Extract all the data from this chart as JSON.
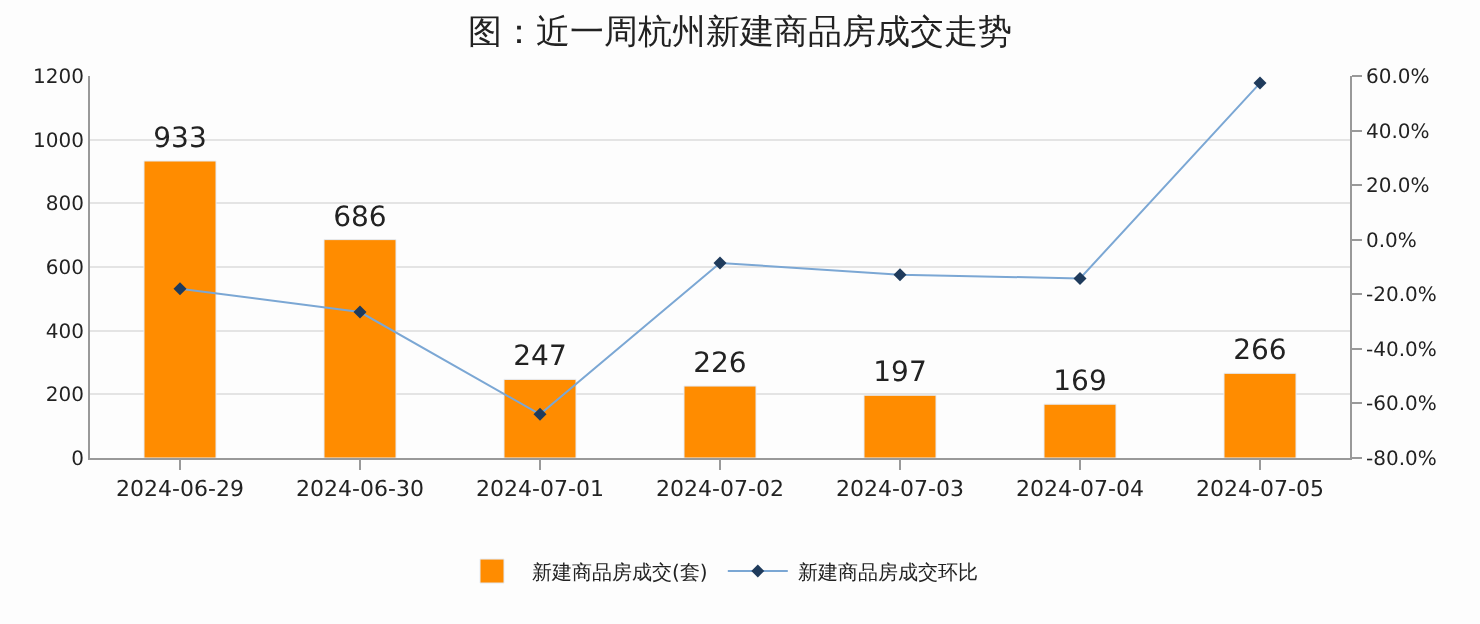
{
  "chart_data": {
    "type": "bar",
    "title": "图：近一周杭州新建商品房成交走势",
    "categories": [
      "2024-06-29",
      "2024-06-30",
      "2024-07-01",
      "2024-07-02",
      "2024-07-03",
      "2024-07-04",
      "2024-07-05"
    ],
    "series": [
      {
        "name": "新建商品房成交(套)",
        "color": "#ff8c00",
        "values": [
          933,
          686,
          247,
          226,
          197,
          169,
          266
        ],
        "value_labels": [
          "933",
          "686",
          "247",
          "226",
          "197",
          "169",
          "266"
        ]
      },
      {
        "name": "新建商品房成交环比",
        "type": "line",
        "axis": "y2",
        "color": "#7ba7d4",
        "marker": "diamond",
        "values": [
          -18,
          -26.5,
          -64,
          -8.5,
          -12.8,
          -14.2,
          57.4
        ]
      }
    ],
    "ylim": [
      0,
      1200
    ],
    "yticks": [
      0,
      200,
      400,
      600,
      800,
      1000,
      1200
    ],
    "y2lim": [
      -80,
      60
    ],
    "y2ticks": [
      {
        "value": -80,
        "label": "-80.0%"
      },
      {
        "value": -60,
        "label": "-60.0%"
      },
      {
        "value": -40,
        "label": "-40.0%"
      },
      {
        "value": -20,
        "label": "-20.0%"
      },
      {
        "value": 0,
        "label": "0.0%"
      },
      {
        "value": 20,
        "label": "20.0%"
      },
      {
        "value": 40,
        "label": "40.0%"
      },
      {
        "value": 60,
        "label": "60.0%"
      }
    ],
    "grid": "y",
    "legend": "bottom"
  }
}
